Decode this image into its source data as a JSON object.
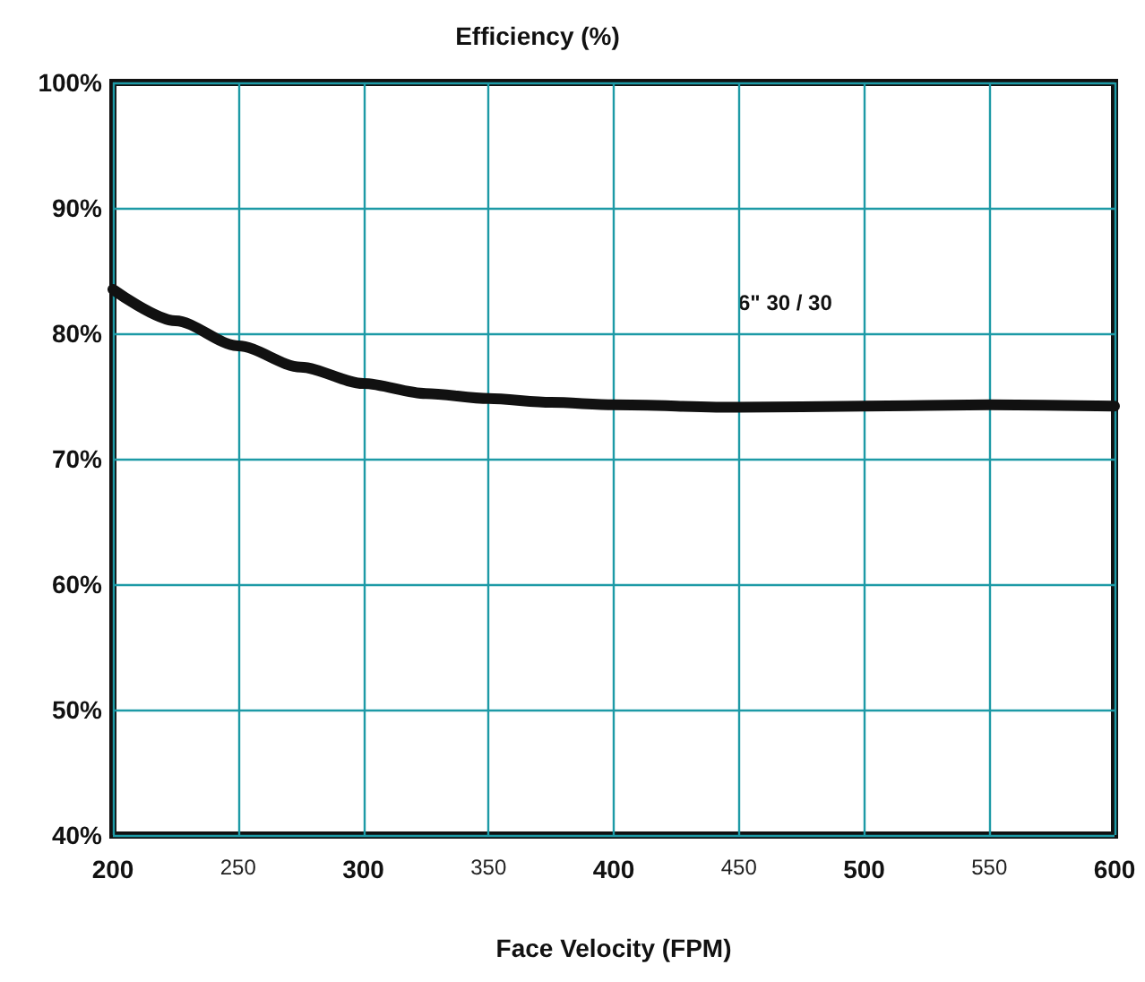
{
  "chart_data": {
    "type": "line",
    "title": "Efficiency (%)",
    "xlabel": "Face Velocity (FPM)",
    "x": [
      200,
      225,
      250,
      275,
      300,
      325,
      350,
      375,
      400,
      450,
      500,
      550,
      600
    ],
    "series": [
      {
        "color": "#111111",
        "values": [
          83.5,
          81,
          79,
          77.3,
          76,
          75.2,
          74.8,
          74.5,
          74.3,
          74.1,
          74.2,
          74.3,
          74.2
        ]
      }
    ],
    "xlim": [
      200,
      600
    ],
    "xticks": [
      200,
      250,
      300,
      350,
      400,
      450,
      500,
      550,
      600
    ],
    "ylim": [
      40,
      100
    ],
    "yticks": [
      {
        "value": 40,
        "label": "40%"
      },
      {
        "value": 50,
        "label": "50%"
      },
      {
        "value": 60,
        "label": "60%"
      },
      {
        "value": 70,
        "label": "70%"
      },
      {
        "value": 80,
        "label": "80%"
      },
      {
        "value": 90,
        "label": "90%"
      },
      {
        "value": 100,
        "label": "100%"
      }
    ],
    "annotations": [
      "6\" 30 / 30"
    ],
    "grid": true,
    "marker": "none",
    "line_style": "solid"
  }
}
